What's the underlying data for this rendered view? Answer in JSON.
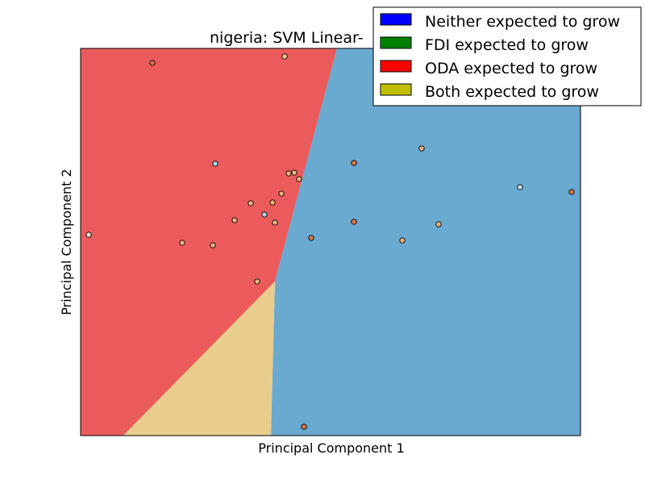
{
  "chart_data": {
    "type": "scatter",
    "title": "nigeria: SVM Linear-",
    "xlabel": "Principal Component 1",
    "ylabel": "Principal Component 2",
    "xlim": [
      0,
      620
    ],
    "ylim": [
      0,
      480
    ],
    "grid": false,
    "legend_placement": "top-right",
    "regions": [
      {
        "name": "ODA expected to grow",
        "color": "#ec5b5c",
        "polygon": [
          [
            0,
            0
          ],
          [
            0,
            480
          ],
          [
            318,
            480
          ],
          [
            241,
            191
          ],
          [
            53,
            0
          ]
        ]
      },
      {
        "name": "Neither expected to grow",
        "color": "#6aa9d0",
        "polygon": [
          [
            318,
            480
          ],
          [
            620,
            480
          ],
          [
            620,
            0
          ],
          [
            236,
            0
          ],
          [
            241,
            191
          ]
        ]
      },
      {
        "name": "Both expected to grow",
        "color": "#e8cd8c",
        "polygon": [
          [
            53,
            0
          ],
          [
            236,
            0
          ],
          [
            241,
            191
          ]
        ]
      }
    ],
    "legend": [
      {
        "label": "Neither expected to grow",
        "color": "#0000ff"
      },
      {
        "label": "FDI expected to grow",
        "color": "#008000"
      },
      {
        "label": "ODA expected to grow",
        "color": "#ff0000"
      },
      {
        "label": "Both expected to grow",
        "color": "#bfbf00"
      }
    ],
    "points": [
      {
        "x": 89,
        "y": 462,
        "color": "#d9774a"
      },
      {
        "x": 253,
        "y": 470,
        "color": "#f0c88e"
      },
      {
        "x": 167,
        "y": 337,
        "color": "#a8d4e4"
      },
      {
        "x": 423,
        "y": 356,
        "color": "#eeb27a"
      },
      {
        "x": 339,
        "y": 338,
        "color": "#d9774a"
      },
      {
        "x": 258,
        "y": 325,
        "color": "#eeb27a"
      },
      {
        "x": 265,
        "y": 326,
        "color": "#eeb27a"
      },
      {
        "x": 271,
        "y": 318,
        "color": "#eeb27a"
      },
      {
        "x": 249,
        "y": 300,
        "color": "#eeb27a"
      },
      {
        "x": 545,
        "y": 308,
        "color": "#c6e2ea"
      },
      {
        "x": 609,
        "y": 302,
        "color": "#d9774a"
      },
      {
        "x": 211,
        "y": 288,
        "color": "#eeb27a"
      },
      {
        "x": 238,
        "y": 289,
        "color": "#eeb27a"
      },
      {
        "x": 228,
        "y": 274,
        "color": "#a8d4e4"
      },
      {
        "x": 191,
        "y": 267,
        "color": "#eeb27a"
      },
      {
        "x": 241,
        "y": 264,
        "color": "#eeb27a"
      },
      {
        "x": 339,
        "y": 265,
        "color": "#d9774a"
      },
      {
        "x": 444,
        "y": 262,
        "color": "#eeb27a"
      },
      {
        "x": 10,
        "y": 249,
        "color": "#e4e4d2"
      },
      {
        "x": 286,
        "y": 245,
        "color": "#d9774a"
      },
      {
        "x": 399,
        "y": 242,
        "color": "#eeb27a"
      },
      {
        "x": 126,
        "y": 239,
        "color": "#eeb27a"
      },
      {
        "x": 164,
        "y": 236,
        "color": "#eeb27a"
      },
      {
        "x": 219,
        "y": 191,
        "color": "#eeb27a"
      },
      {
        "x": 277,
        "y": 11,
        "color": "#d9774a"
      }
    ]
  }
}
